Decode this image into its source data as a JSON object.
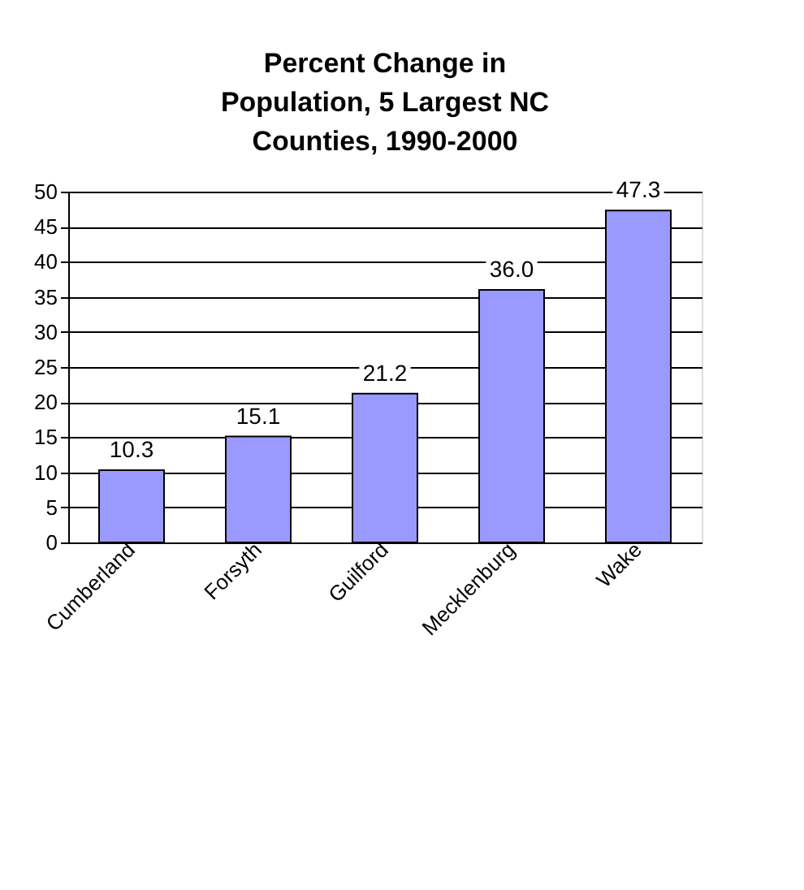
{
  "chart_data": {
    "type": "bar",
    "title": "Percent Change in Population, 5 Largest NC Counties, 1990-2000",
    "categories": [
      "Cumberland",
      "Forsyth",
      "Guilford",
      "Mecklenburg",
      "Wake"
    ],
    "values": [
      10.3,
      15.1,
      21.2,
      36.0,
      47.3
    ],
    "value_labels": [
      "10.3",
      "15.1",
      "21.2",
      "36.0",
      "47.3"
    ],
    "color": "#9999ff",
    "ylim": [
      0,
      50
    ],
    "yticks": [
      0,
      5,
      10,
      15,
      20,
      25,
      30,
      35,
      40,
      45,
      50
    ],
    "grid": "y"
  }
}
